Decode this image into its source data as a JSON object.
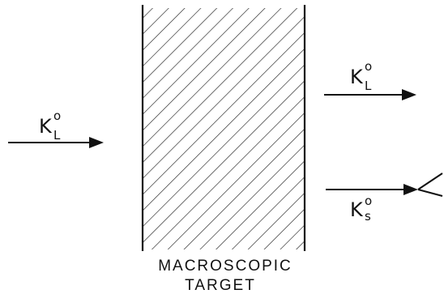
{
  "incoming": {
    "symbol": "K",
    "superscript": "o",
    "subscript": "L"
  },
  "transmitted": {
    "symbol": "K",
    "superscript": "o",
    "subscript": "L"
  },
  "regenerated": {
    "symbol": "K",
    "superscript": "o",
    "subscript": "s"
  },
  "target": {
    "line1": "MACROSCOPIC",
    "line2": "TARGET"
  }
}
